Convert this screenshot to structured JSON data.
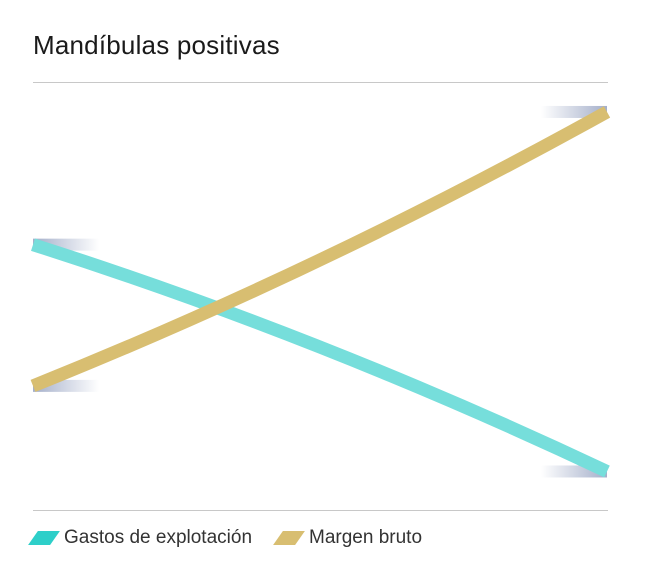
{
  "title": "Mandíbulas positivas",
  "colors": {
    "series_1": "#76DEDB",
    "series_2": "#D8BE71",
    "legend_swatch_1": "#2ECFC9",
    "legend_swatch_2": "#D8BE71",
    "marker": "#9AA6C4",
    "rule": "#C8C8C8"
  },
  "chart_data": {
    "type": "line",
    "title": "Mandíbulas positivas",
    "xlabel": "",
    "ylabel": "",
    "grid": false,
    "legend_position": "bottom-left",
    "x": [
      0,
      1
    ],
    "xlim": [
      0,
      1
    ],
    "ylim": [
      0,
      1
    ],
    "series": [
      {
        "name": "Gastos de explotación",
        "values": [
          0.62,
          0.09
        ],
        "curvature": "concave"
      },
      {
        "name": "Margen bruto",
        "values": [
          0.29,
          0.93
        ],
        "curvature": "convex"
      }
    ]
  },
  "legend": [
    {
      "label": "Gastos de explotación"
    },
    {
      "label": "Margen bruto"
    }
  ]
}
